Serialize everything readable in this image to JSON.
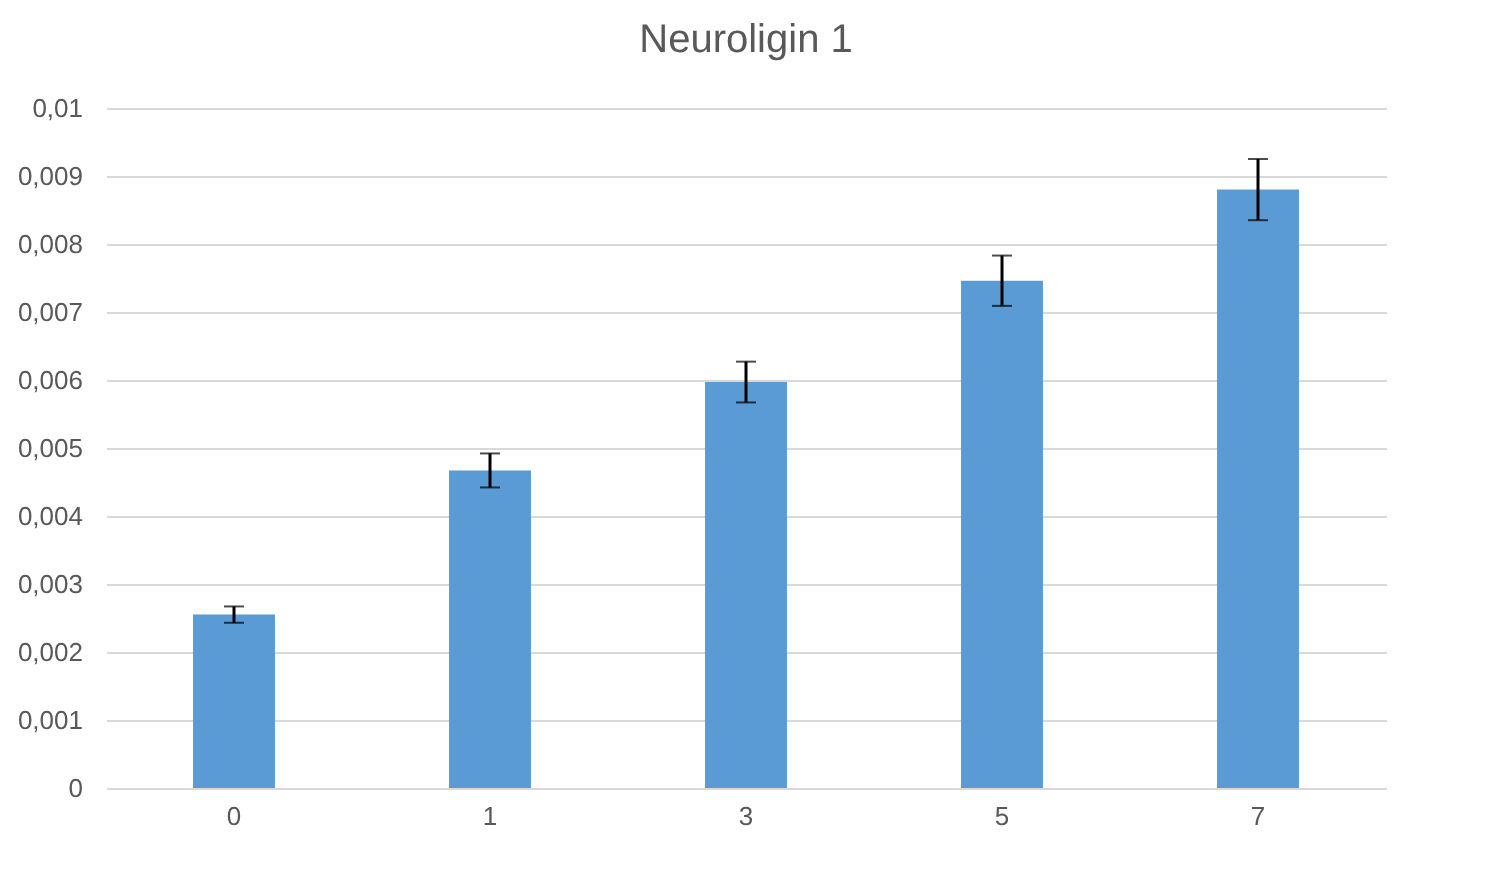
{
  "chart_data": {
    "type": "bar",
    "title": "Neuroligin 1",
    "categories": [
      "0",
      "1",
      "3",
      "5",
      "7"
    ],
    "values": [
      0.00255,
      0.00467,
      0.00597,
      0.00746,
      0.0088
    ],
    "errors": [
      0.00012,
      0.00025,
      0.0003,
      0.00037,
      0.00045
    ],
    "color": "#5b9bd5",
    "ylim": [
      0,
      0.01
    ],
    "yticks": [
      0,
      {
        "value": 0.001,
        "label": "0,001"
      },
      {
        "value": 0.002,
        "label": "0,002"
      },
      {
        "value": 0.003,
        "label": "0,003"
      },
      {
        "value": 0.004,
        "label": "0,004"
      },
      {
        "value": 0.005,
        "label": "0,005"
      },
      {
        "value": 0.006,
        "label": "0,006"
      },
      {
        "value": 0.007,
        "label": "0,007"
      },
      {
        "value": 0.008,
        "label": "0,008"
      },
      {
        "value": 0.009,
        "label": "0,009"
      },
      {
        "value": 0.01,
        "label": "0,01"
      }
    ],
    "grid": "y"
  }
}
